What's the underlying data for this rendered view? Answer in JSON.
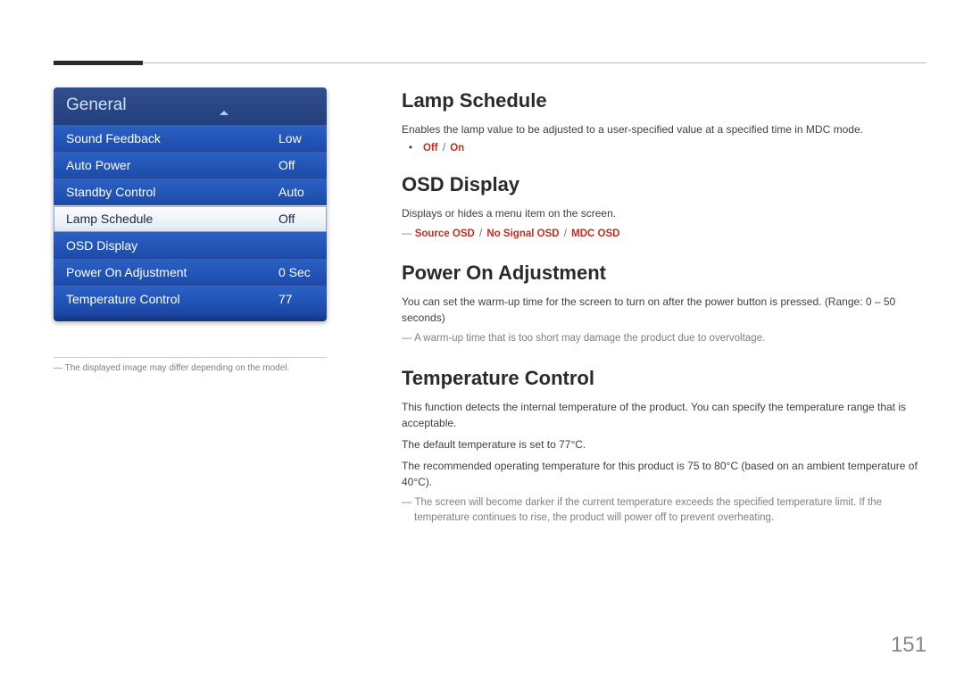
{
  "page_number": "151",
  "left": {
    "panel_title": "General",
    "items": [
      {
        "label": "Sound Feedback",
        "value": "Low",
        "selected": false
      },
      {
        "label": "Auto Power",
        "value": "Off",
        "selected": false
      },
      {
        "label": "Standby Control",
        "value": "Auto",
        "selected": false
      },
      {
        "label": "Lamp Schedule",
        "value": "Off",
        "selected": true
      },
      {
        "label": "OSD Display",
        "value": "",
        "selected": false
      },
      {
        "label": "Power On Adjustment",
        "value": "0 Sec",
        "selected": false
      },
      {
        "label": "Temperature Control",
        "value": "77",
        "selected": false
      }
    ],
    "note": "The displayed image may differ depending on the model."
  },
  "sections": {
    "lamp": {
      "title": "Lamp Schedule",
      "desc": "Enables the lamp value to be adjusted to a user-specified value at a specified time in MDC mode.",
      "options": [
        "Off",
        "On"
      ]
    },
    "osd": {
      "title": "OSD Display",
      "desc": "Displays or hides a menu item on the screen.",
      "options": [
        "Source OSD",
        "No Signal OSD",
        "MDC OSD"
      ]
    },
    "power": {
      "title": "Power On Adjustment",
      "desc": "You can set the warm-up time for the screen to turn on after the power button is pressed. (Range: 0 – 50 seconds)",
      "note": "A warm-up time that is too short may damage the product due to overvoltage."
    },
    "temp": {
      "title": "Temperature Control",
      "desc1": "This function detects the internal temperature of the product. You can specify the temperature range that is acceptable.",
      "desc2": "The default temperature is set to 77°C.",
      "desc3": "The recommended operating temperature for this product is 75 to 80°C (based on an ambient temperature of 40°C).",
      "note": "The screen will become darker if the current temperature exceeds the specified temperature limit. If the temperature continues to rise, the product will power off to prevent overheating."
    }
  },
  "colors": {
    "accent_red": "#c52d21",
    "panel_blue_top": "#314e8d",
    "panel_row_blue": "#1d4aa8",
    "grey_text": "#808085"
  }
}
